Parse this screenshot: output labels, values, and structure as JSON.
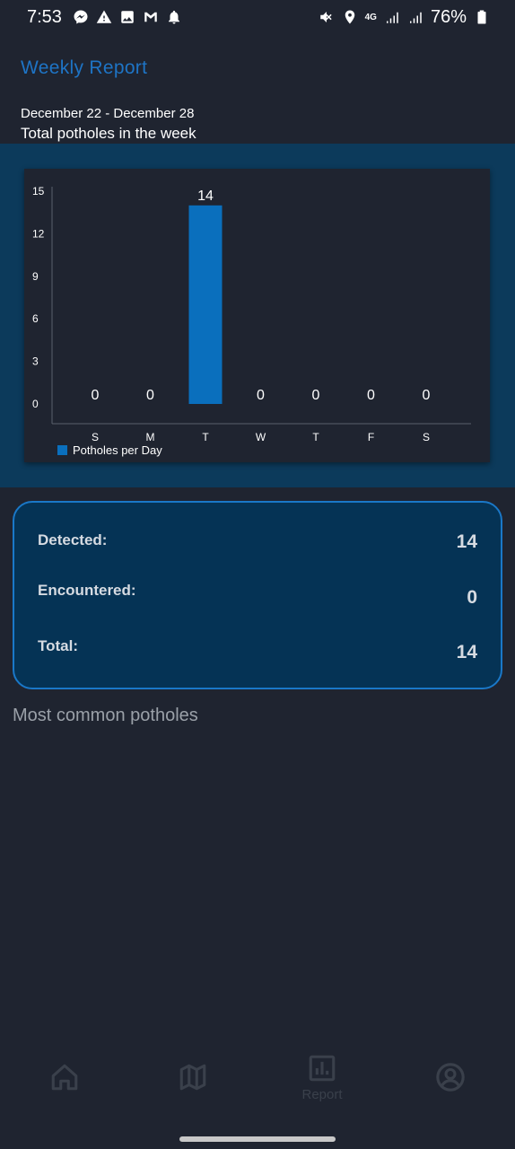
{
  "status_bar": {
    "time": "7:53",
    "network": "4G",
    "battery": "76%",
    "icons_left": [
      "messenger-icon",
      "warning-icon",
      "gallery-icon",
      "gmail-icon",
      "bell-icon"
    ],
    "icons_right": [
      "mute-icon",
      "location-icon",
      "signal-icon",
      "signal-icon",
      "battery-icon"
    ]
  },
  "header": {
    "title": "Weekly Report",
    "date_range": "December 22 - December 28",
    "subtitle": "Total potholes in the week"
  },
  "chart_data": {
    "type": "bar",
    "categories": [
      "S",
      "M",
      "T",
      "W",
      "T",
      "F",
      "S"
    ],
    "series": [
      {
        "name": "Potholes per Day",
        "values": [
          0,
          0,
          14,
          0,
          0,
          0,
          0
        ]
      }
    ],
    "yticks": [
      "0",
      "3",
      "6",
      "9",
      "12",
      "15"
    ],
    "ylim": [
      0,
      15
    ],
    "legend_position": "bottom-left",
    "bar_color": "#0a6fbd"
  },
  "stats": {
    "detected_label": "Detected:",
    "detected_value": "14",
    "encountered_label": "Encountered:",
    "encountered_value": "0",
    "total_label": "Total:",
    "total_value": "14"
  },
  "section": {
    "most_common_title": "Most common potholes"
  },
  "nav": {
    "home": "home-icon",
    "map": "map-icon",
    "report_label": "Report",
    "report_icon": "bar-chart-icon",
    "profile": "profile-icon"
  },
  "colors": {
    "background": "#1f2430",
    "accent": "#1e74c5",
    "band": "#0c3a5b",
    "card": "#053355"
  }
}
